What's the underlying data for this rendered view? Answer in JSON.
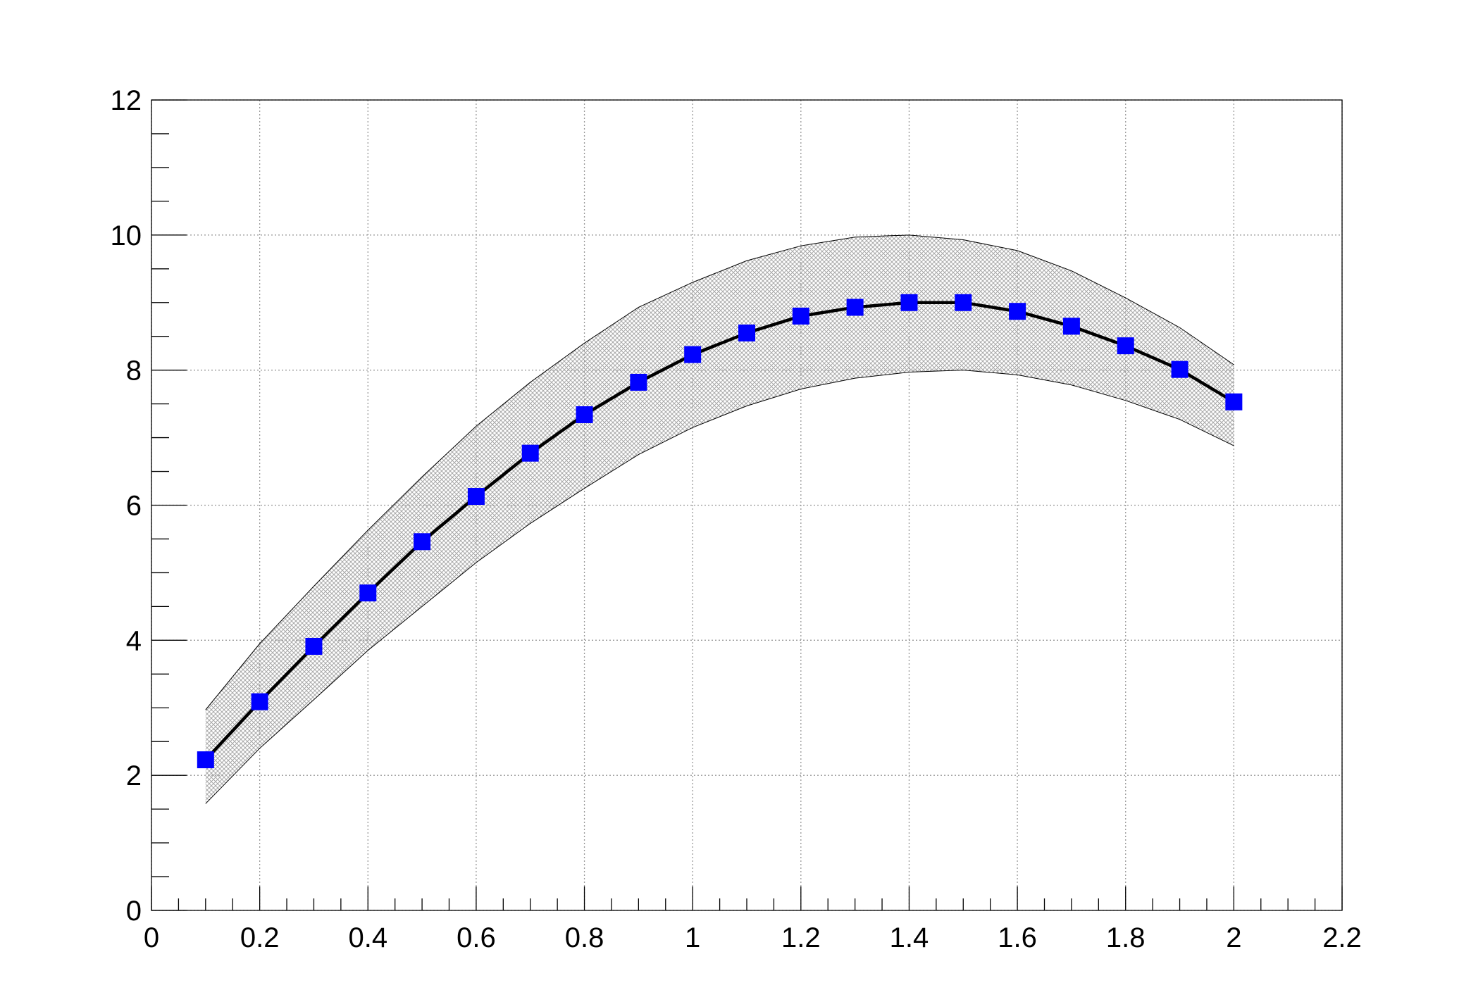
{
  "chart_data": {
    "type": "line",
    "x": [
      0.1,
      0.2,
      0.3,
      0.4,
      0.5,
      0.6,
      0.7,
      0.8,
      0.9,
      1.0,
      1.1,
      1.2,
      1.3,
      1.4,
      1.5,
      1.6,
      1.7,
      1.8,
      1.9,
      2.0
    ],
    "series": [
      {
        "color": "#0000ff",
        "line_color": "#000000",
        "band_color": "#b0b0b0",
        "values": [
          2.23,
          3.09,
          3.91,
          4.7,
          5.46,
          6.13,
          6.77,
          7.34,
          7.82,
          8.23,
          8.55,
          8.8,
          8.93,
          9.0,
          9.0,
          8.87,
          8.65,
          8.36,
          8.01,
          7.53
        ],
        "band_upper": [
          2.97,
          3.95,
          4.8,
          5.63,
          6.42,
          7.17,
          7.82,
          8.4,
          8.93,
          9.3,
          9.62,
          9.84,
          9.97,
          10.0,
          9.93,
          9.77,
          9.47,
          9.07,
          8.63,
          8.08
        ],
        "band_lower": [
          1.58,
          2.4,
          3.12,
          3.85,
          4.5,
          5.15,
          5.73,
          6.25,
          6.75,
          7.15,
          7.47,
          7.72,
          7.88,
          7.97,
          8.0,
          7.93,
          7.78,
          7.55,
          7.27,
          6.88
        ]
      }
    ],
    "xlim": [
      0,
      2.2
    ],
    "xticks": [
      0,
      0.2,
      0.4,
      0.6,
      0.8,
      1,
      1.2,
      1.4,
      1.6,
      1.8,
      2,
      2.2
    ],
    "ylim": [
      0,
      12
    ],
    "yticks": [
      0,
      2,
      4,
      6,
      8,
      10,
      12
    ],
    "grid": true
  }
}
